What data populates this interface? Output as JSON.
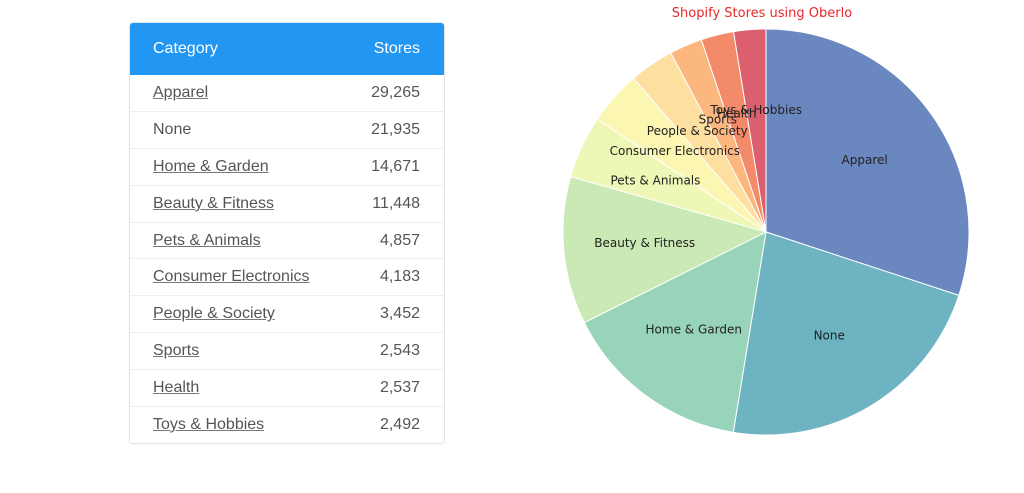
{
  "table": {
    "header": {
      "category": "Category",
      "stores": "Stores"
    },
    "rows": [
      {
        "category": "Apparel",
        "stores": "29,265",
        "link": true
      },
      {
        "category": "None",
        "stores": "21,935",
        "link": false
      },
      {
        "category": "Home & Garden",
        "stores": "14,671",
        "link": true
      },
      {
        "category": "Beauty & Fitness",
        "stores": "11,448",
        "link": true
      },
      {
        "category": "Pets & Animals",
        "stores": "4,857",
        "link": true
      },
      {
        "category": "Consumer Electronics",
        "stores": "4,183",
        "link": true
      },
      {
        "category": "People & Society",
        "stores": "3,452",
        "link": true
      },
      {
        "category": "Sports",
        "stores": "2,543",
        "link": true
      },
      {
        "category": "Health",
        "stores": "2,537",
        "link": true
      },
      {
        "category": "Toys & Hobbies",
        "stores": "2,492",
        "link": true
      }
    ]
  },
  "chart_data": {
    "type": "pie",
    "title": "Shopify Stores using Oberlo",
    "categories": [
      "Apparel",
      "None",
      "Home & Garden",
      "Beauty & Fitness",
      "Pets & Animals",
      "Consumer Electronics",
      "People & Society",
      "Sports",
      "Health",
      "Toys & Hobbies"
    ],
    "values": [
      29265,
      21935,
      14671,
      11448,
      4857,
      4183,
      3452,
      2543,
      2537,
      2492
    ],
    "colors": [
      "#6a87c0",
      "#6db3c1",
      "#98d4b9",
      "#cbe9b4",
      "#eef7b5",
      "#fbf6b2",
      "#fde0a0",
      "#fbb77e",
      "#f38a6a",
      "#dc5f6f"
    ],
    "start_angle_deg": 0,
    "direction": "clockwise",
    "legend": "none"
  }
}
